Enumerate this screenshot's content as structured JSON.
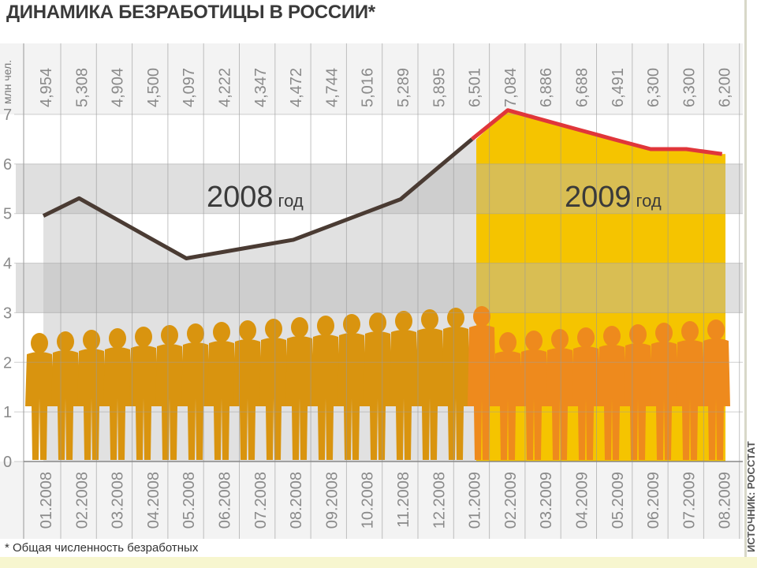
{
  "title": "ДИНАМИКА БЕЗРАБОТИЦЫ В РОССИИ*",
  "footnote": "* Общая численность безработных",
  "source": "ИСТОЧНИК: РОССТАТ",
  "colors": {
    "line_2008": "#4a3b33",
    "line_2009": "#e0363a",
    "area_2009": "#f5c400",
    "people_2008": "#d9940f",
    "people_2009": "#ee8a1d",
    "band": "#b9b9b9"
  },
  "chart_data": {
    "type": "line",
    "title": "ДИНАМИКА БЕЗРАБОТИЦЫ В РОССИИ*",
    "ylabel": "млн чел.",
    "xlabel": "",
    "ylim": [
      0,
      7
    ],
    "yticks": [
      "0",
      "1",
      "2",
      "3",
      "4",
      "5",
      "6",
      "7"
    ],
    "grid": true,
    "categories": [
      "01.2008",
      "02.2008",
      "03.2008",
      "04.2008",
      "05.2008",
      "06.2008",
      "07.2008",
      "08.2008",
      "09.2008",
      "10.2008",
      "11.2008",
      "12.2008",
      "01.2009",
      "02.2009",
      "03.2009",
      "04.2009",
      "05.2009",
      "06.2009",
      "07.2009",
      "08.2009"
    ],
    "value_labels": [
      "4,954",
      "5,308",
      "4,904",
      "4,500",
      "4,097",
      "4,222",
      "4,347",
      "4,472",
      "4,744",
      "5,016",
      "5,289",
      "5,895",
      "6,501",
      "7,084",
      "6,886",
      "6,688",
      "6,491",
      "6,300",
      "6,300",
      "6,200"
    ],
    "values": [
      4.954,
      5.308,
      4.904,
      4.5,
      4.097,
      4.222,
      4.347,
      4.472,
      4.744,
      5.016,
      5.289,
      5.895,
      6.501,
      7.084,
      6.886,
      6.688,
      6.491,
      6.3,
      6.3,
      6.2
    ],
    "annotations": [
      {
        "year": "2008",
        "unit": "год"
      },
      {
        "year": "2009",
        "unit": "год"
      }
    ]
  }
}
